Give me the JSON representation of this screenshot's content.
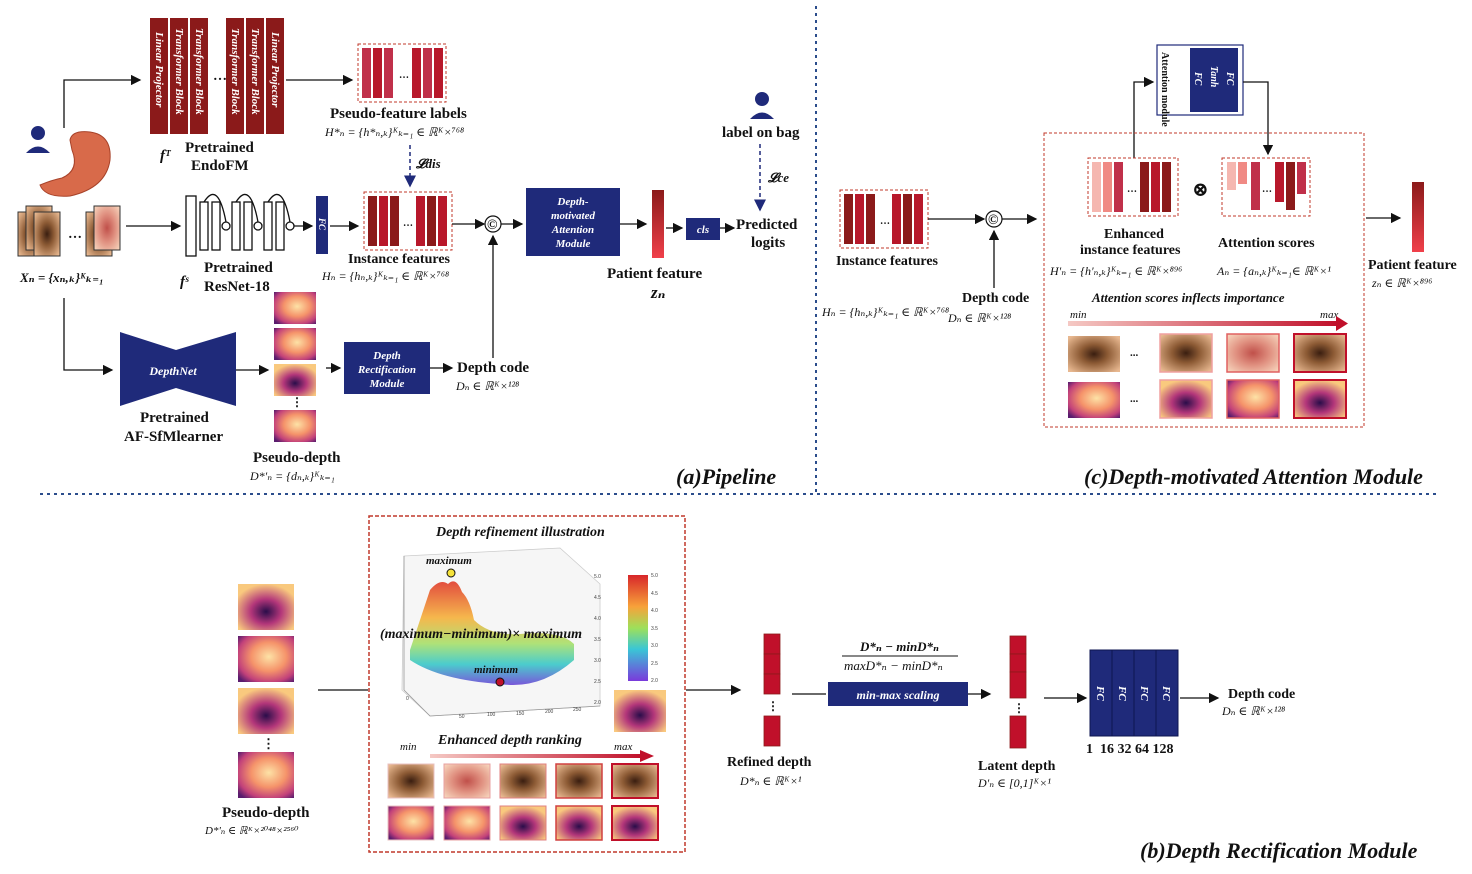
{
  "panel_a": {
    "title": "(a)Pipeline",
    "endofm_vertical": [
      "Linear Projector",
      "Transformer Block",
      "Transformer Block",
      "Transformer Block",
      "Transformer Block",
      "Linear Projector"
    ],
    "pseudo_feature_labels": "Pseudo-feature labels",
    "pseudo_feature_math": "H*ₙ = {h*ₙ,ₖ}ᴷₖ₌₁ ∈ ℝᴷ×⁷⁶⁸",
    "f_t": "fᵀ",
    "pretrained_endofm": [
      "Pretrained",
      "EndoFM"
    ],
    "l_dis": "𝓛dis",
    "label_on_bag": "label on bag",
    "l_ce": "𝓛ce",
    "x_n": "Xₙ = {xₙ,ₖ}ᴷₖ₌₁",
    "fc": "FC",
    "f_s": "fˢ",
    "pretrained_resnet": [
      "Pretrained",
      "ResNet-18"
    ],
    "instance_features": "Instance features",
    "instance_math": "Hₙ = {hₙ,ₖ}ᴷₖ₌₁ ∈ ℝᴷ×⁷⁶⁸",
    "concat": "©",
    "dam_box": [
      "Depth-",
      "motivated",
      "Attention",
      "Module"
    ],
    "patient_feature": "Patient feature",
    "z_n": "zₙ",
    "cls": "cls",
    "predicted_logits": [
      "Predicted",
      "logits"
    ],
    "depthnet": "DepthNet",
    "pretrained_af": [
      "Pretrained",
      "AF-SfMlearner"
    ],
    "drm_box": [
      "Depth",
      "Rectification",
      "Module"
    ],
    "depth_code": "Depth code",
    "depth_code_math": "Dₙ ∈ ℝᴷ×¹²⁸",
    "pseudo_depth": "Pseudo-depth",
    "pseudo_depth_math": "D*'ₙ = {dₙ,ₖ}ᴷₖ₌₁"
  },
  "panel_c": {
    "title": "(c)Depth-motivated Attention Module",
    "attention_vertical": [
      "Attention module",
      "FC",
      "Tanh",
      "FC"
    ],
    "instance_features": "Instance features",
    "instance_math": "Hₙ = {hₙ,ₖ}ᴷₖ₌₁ ∈ ℝᴷ×⁷⁶⁸",
    "depth_code": "Depth code",
    "depth_code_math": "Dₙ ∈ ℝᴷ×¹²⁸",
    "enhanced": [
      "Enhanced",
      "instance features"
    ],
    "enhanced_math": "H'ₙ = {h'ₙ,ₖ}ᴷₖ₌₁ ∈ ℝᴷ×⁸⁹⁶",
    "otimes": "⊗",
    "attention_scores": "Attention scores",
    "attention_math": "Aₙ = {aₙ,ₖ}ᴷₖ₌₁∈ ℝᴷ×¹",
    "patient_feature": "Patient feature",
    "patient_math": "zₙ ∈ ℝᴷ×⁸⁹⁶",
    "inflects": "Attention scores inflects importance",
    "min": "min",
    "max": "max",
    "dots": "..."
  },
  "panel_b": {
    "title": "(b)Depth Rectification Module",
    "refine_title": "Depth refinement illustration",
    "maximum": "maximum",
    "minimum": "minimum",
    "formula": "(maximum−minimum)× maximum",
    "enhanced_ranking": "Enhanced depth ranking",
    "min": "min",
    "max": "max",
    "pseudo_depth": "Pseudo-depth",
    "pseudo_depth_math": "D*'ₙ ∈ ℝᴷ×²⁰⁴⁸×²⁵⁶⁰",
    "refined_depth": "Refined depth",
    "refined_math": "D*ₙ ∈ ℝᴷ×¹",
    "minmax_num": "D*ₙ − minD*ₙ",
    "minmax_den": "maxD*ₙ − minD*ₙ",
    "minmax_box": "min-max scaling",
    "latent_depth": "Latent depth",
    "latent_math": "D'ₙ ∈ [0,1]ᴷ×¹",
    "fc_labels": [
      "FC",
      "FC",
      "FC",
      "FC"
    ],
    "fc_dims": "1  16 32 64 128",
    "depth_code": "Depth code",
    "depth_code_math": "Dₙ ∈ ℝᴷ×¹²⁸",
    "colorbar_ticks": [
      "5.0",
      "4.5",
      "4.0",
      "3.5",
      "3.0",
      "2.5",
      "2.0"
    ],
    "axis_ticks_x": [
      "0",
      "50",
      "100",
      "150",
      "200",
      "250"
    ],
    "axis_ticks_z": [
      "5.0",
      "4.5",
      "4.0",
      "3.5",
      "3.0",
      "2.5",
      "2.0"
    ]
  },
  "colors": {
    "navy": "#1f2a7a",
    "darkred": "#8b1a1a",
    "red": "#b8182b",
    "pink": "#f2a3a0",
    "dashred": "#c0392b",
    "dotblue": "#2b4d8c"
  }
}
